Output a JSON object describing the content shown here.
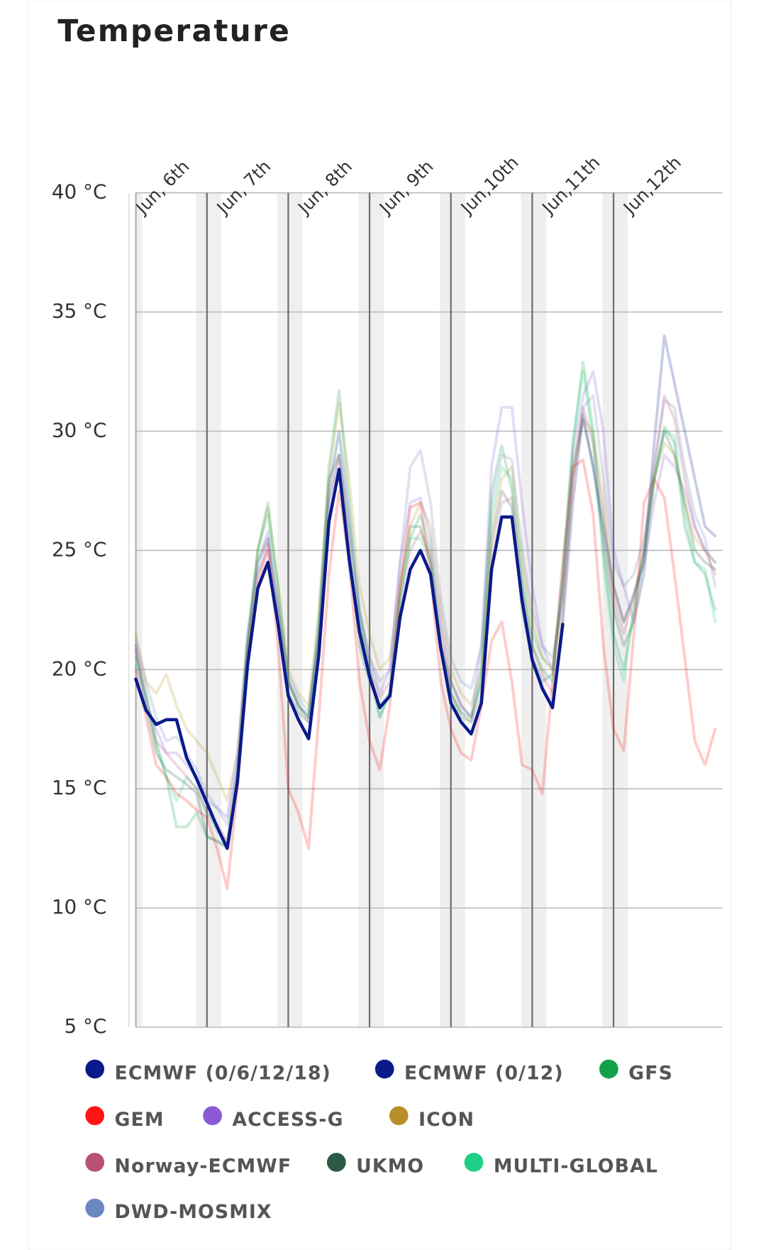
{
  "chart_data": {
    "type": "line",
    "title": "Temperature",
    "categories": [
      "Jun, 6th",
      null,
      null,
      null,
      null,
      null,
      null,
      null,
      "Jun, 7th",
      null,
      null,
      null,
      null,
      null,
      null,
      null,
      "Jun, 8th",
      null,
      null,
      null,
      null,
      null,
      null,
      null,
      "Jun, 9th",
      null,
      null,
      null,
      null,
      null,
      null,
      null,
      "Jun,10th",
      null,
      null,
      null,
      null,
      null,
      null,
      null,
      "Jun,11th",
      null,
      null,
      null,
      null,
      null,
      null,
      null,
      "Jun,12th",
      null,
      null,
      null,
      null,
      null,
      null,
      null,
      null,
      null,
      null
    ],
    "ylim": [
      5,
      40
    ],
    "yticks": [
      {
        "value": 5,
        "label": "5 °C"
      },
      {
        "value": 10,
        "label": "10 °C"
      },
      {
        "value": 15,
        "label": "15 °C"
      },
      {
        "value": 20,
        "label": "20 °C"
      },
      {
        "value": 25,
        "label": "25 °C"
      },
      {
        "value": 30,
        "label": "30 °C"
      },
      {
        "value": 35,
        "label": "35 °C"
      },
      {
        "value": 40,
        "label": "40 °C"
      }
    ],
    "grid": true,
    "series": [
      {
        "name": "ECMWF (0/6/12/18)",
        "color": "#0a1a8a",
        "values": [
          null,
          19.6,
          18.3,
          17.7,
          17.9,
          17.9,
          16.3,
          15.4,
          14.4,
          13.4,
          12.5,
          15.3,
          20.2,
          23.4,
          24.5,
          21.9,
          18.9,
          17.9,
          17.1,
          20.6,
          26.2,
          28.4,
          24.6,
          21.6,
          19.7,
          18.4,
          18.9,
          22.2,
          24.2,
          25.0,
          24.0,
          20.9,
          18.6,
          17.8,
          17.3,
          18.6,
          24.2,
          26.4,
          26.4,
          22.9,
          20.4,
          19.2,
          18.4,
          21.9,
          null,
          null,
          null,
          null,
          null,
          null,
          null,
          null,
          null,
          null,
          null,
          null,
          null,
          null,
          null
        ]
      },
      {
        "name": "ECMWF (0/12)",
        "color": "#0a1a8a",
        "values": [
          null,
          19.6,
          18.3,
          17.7,
          17.9,
          17.9,
          16.3,
          15.4,
          14.4,
          13.4,
          12.5,
          15.3,
          20.2,
          23.4,
          24.5,
          21.9,
          18.9,
          17.9,
          17.1,
          20.6,
          26.2,
          28.4,
          24.6,
          21.6,
          19.7,
          18.4,
          18.9,
          22.2,
          24.2,
          25.0,
          24.0,
          20.9,
          18.6,
          17.8,
          17.3,
          18.6,
          24.2,
          26.4,
          26.4,
          22.9,
          20.4,
          19.2,
          18.4,
          21.9,
          27.0,
          30.7,
          28.5,
          26.0,
          23.5,
          22.0,
          23.2,
          24.5,
          29.5,
          34.0,
          32.0,
          30.0,
          28.0,
          26.0,
          25.6
        ]
      },
      {
        "name": "GFS",
        "color": "#12a04a",
        "values": [
          null,
          20.5,
          19.0,
          17.0,
          15.5,
          13.4,
          13.4,
          14.0,
          13.0,
          12.8,
          12.6,
          15.5,
          21.0,
          25.0,
          27.0,
          23.5,
          19.5,
          18.5,
          18.0,
          22.0,
          28.5,
          31.7,
          27.0,
          22.5,
          20.0,
          18.0,
          19.0,
          23.0,
          25.5,
          26.5,
          25.0,
          21.0,
          19.0,
          18.0,
          17.8,
          20.0,
          27.5,
          29.4,
          27.5,
          23.5,
          21.0,
          20.0,
          19.5,
          24.0,
          29.5,
          32.9,
          30.0,
          25.0,
          21.5,
          20.0,
          22.5,
          25.0,
          28.0,
          30.2,
          29.5,
          26.0,
          24.5,
          24.0,
          22.5
        ]
      },
      {
        "name": "GEM",
        "color": "#ff1414",
        "values": [
          null,
          20.0,
          18.0,
          16.0,
          15.5,
          14.8,
          14.5,
          14.1,
          13.8,
          12.5,
          10.8,
          15.0,
          20.5,
          23.5,
          25.2,
          21.0,
          15.0,
          14.0,
          12.5,
          18.0,
          24.0,
          27.5,
          24.5,
          19.5,
          17.0,
          15.8,
          18.5,
          23.5,
          26.8,
          27.0,
          24.0,
          19.5,
          17.5,
          16.5,
          16.2,
          18.5,
          21.2,
          22.0,
          19.5,
          16.0,
          15.8,
          14.8,
          19.5,
          24.5,
          28.5,
          28.8,
          26.5,
          21.0,
          17.5,
          16.6,
          21.5,
          27.0,
          28.0,
          27.2,
          24.0,
          20.5,
          17.0,
          16.0,
          17.5
        ]
      },
      {
        "name": "ACCESS-G",
        "color": "#8a5ad8",
        "values": [
          null,
          21.0,
          18.5,
          17.5,
          16.5,
          16.5,
          16.0,
          15.5,
          14.5,
          14.2,
          13.8,
          16.5,
          21.5,
          24.5,
          25.8,
          22.5,
          19.5,
          18.5,
          18.0,
          21.5,
          27.5,
          30.0,
          26.5,
          22.5,
          20.5,
          19.0,
          20.0,
          24.5,
          27.0,
          27.2,
          25.5,
          22.0,
          19.5,
          18.5,
          18.0,
          21.0,
          28.5,
          31.0,
          31.0,
          27.0,
          23.5,
          21.0,
          20.0,
          23.5,
          29.0,
          31.5,
          32.5,
          30.0,
          25.0,
          23.5,
          22.0,
          24.5,
          27.0,
          29.0,
          28.5,
          27.5,
          26.0,
          25.0,
          24.5
        ]
      },
      {
        "name": "ICON",
        "color": "#b8902a",
        "values": [
          null,
          21.5,
          19.5,
          19.0,
          19.8,
          18.5,
          17.5,
          17.0,
          16.5,
          15.5,
          14.5,
          16.5,
          21.0,
          25.0,
          26.8,
          23.5,
          20.0,
          19.0,
          18.5,
          22.5,
          28.0,
          31.2,
          28.0,
          23.5,
          21.5,
          20.0,
          20.5,
          23.5,
          26.0,
          27.0,
          26.0,
          22.5,
          20.0,
          19.0,
          18.5,
          20.0,
          26.0,
          28.0,
          28.5,
          24.5,
          22.0,
          20.5,
          20.0,
          23.0,
          28.0,
          30.5,
          30.0,
          27.0,
          23.5,
          22.0,
          23.0,
          25.0,
          28.0,
          29.5,
          29.0,
          27.0,
          25.5,
          25.0,
          24.5
        ]
      },
      {
        "name": "Norway-ECMWF",
        "color": "#b85078",
        "values": [
          null,
          21.0,
          19.0,
          17.0,
          16.5,
          16.0,
          15.5,
          15.0,
          14.0,
          13.5,
          12.8,
          15.8,
          20.8,
          24.0,
          25.0,
          22.5,
          19.5,
          18.5,
          17.8,
          21.0,
          27.0,
          29.0,
          25.5,
          22.0,
          20.0,
          18.8,
          19.5,
          22.8,
          25.0,
          25.8,
          24.8,
          21.5,
          19.0,
          18.2,
          17.8,
          19.0,
          25.0,
          27.0,
          27.2,
          23.5,
          21.0,
          19.8,
          19.0,
          22.5,
          28.0,
          31.0,
          29.5,
          26.5,
          23.0,
          21.5,
          23.0,
          25.0,
          28.5,
          31.5,
          30.5,
          28.0,
          26.0,
          25.0,
          24.0
        ]
      },
      {
        "name": "UKMO",
        "color": "#2a5a44",
        "values": [
          null,
          20.8,
          18.5,
          16.5,
          15.8,
          15.5,
          15.2,
          14.8,
          13.0,
          12.8,
          12.5,
          15.5,
          21.0,
          24.5,
          25.5,
          22.0,
          19.0,
          18.2,
          17.8,
          21.5,
          28.0,
          29.0,
          25.0,
          21.0,
          19.5,
          18.5,
          19.0,
          23.5,
          26.0,
          26.0,
          24.5,
          21.0,
          19.5,
          18.5,
          18.0,
          19.5,
          25.5,
          27.5,
          26.8,
          22.5,
          20.5,
          19.5,
          19.8,
          23.5,
          28.5,
          30.5,
          28.5,
          25.5,
          22.5,
          21.0,
          22.0,
          24.0,
          28.0,
          30.0,
          29.0,
          27.0,
          25.0,
          24.5,
          24.2
        ]
      },
      {
        "name": "MULTI-GLOBAL",
        "color": "#1ecf86",
        "values": [
          null,
          20.2,
          18.8,
          16.8,
          15.5,
          14.5,
          15.5,
          15.0,
          14.0,
          13.2,
          12.8,
          15.8,
          21.5,
          25.0,
          26.5,
          23.0,
          19.5,
          18.5,
          18.0,
          21.5,
          27.5,
          30.0,
          26.0,
          22.0,
          20.0,
          18.0,
          19.0,
          23.0,
          25.5,
          25.5,
          24.5,
          21.0,
          19.0,
          18.2,
          18.0,
          19.5,
          26.5,
          28.5,
          28.0,
          24.0,
          21.5,
          20.5,
          20.0,
          24.0,
          29.5,
          32.5,
          29.5,
          24.5,
          21.0,
          19.5,
          22.5,
          25.0,
          28.0,
          30.0,
          29.8,
          26.5,
          24.5,
          24.2,
          22.0
        ]
      },
      {
        "name": "DWD-MOSMIX",
        "color": "#6a88c0",
        "values": [
          null,
          21.3,
          19.5,
          18.0,
          17.0,
          17.2,
          16.5,
          15.8,
          14.8,
          14.2,
          13.5,
          16.0,
          21.0,
          24.0,
          25.5,
          22.5,
          19.8,
          18.8,
          18.2,
          21.5,
          27.0,
          29.0,
          26.0,
          22.5,
          20.5,
          19.5,
          20.0,
          24.5,
          28.5,
          29.2,
          27.0,
          23.0,
          20.5,
          19.5,
          19.2,
          21.0,
          27.0,
          29.0,
          28.8,
          25.0,
          22.5,
          21.0,
          20.5,
          23.0,
          28.0,
          31.0,
          31.5,
          28.0,
          24.5,
          23.5,
          24.0,
          25.5,
          28.5,
          31.3,
          31.0,
          28.5,
          26.5,
          25.5,
          23.5
        ]
      }
    ]
  }
}
